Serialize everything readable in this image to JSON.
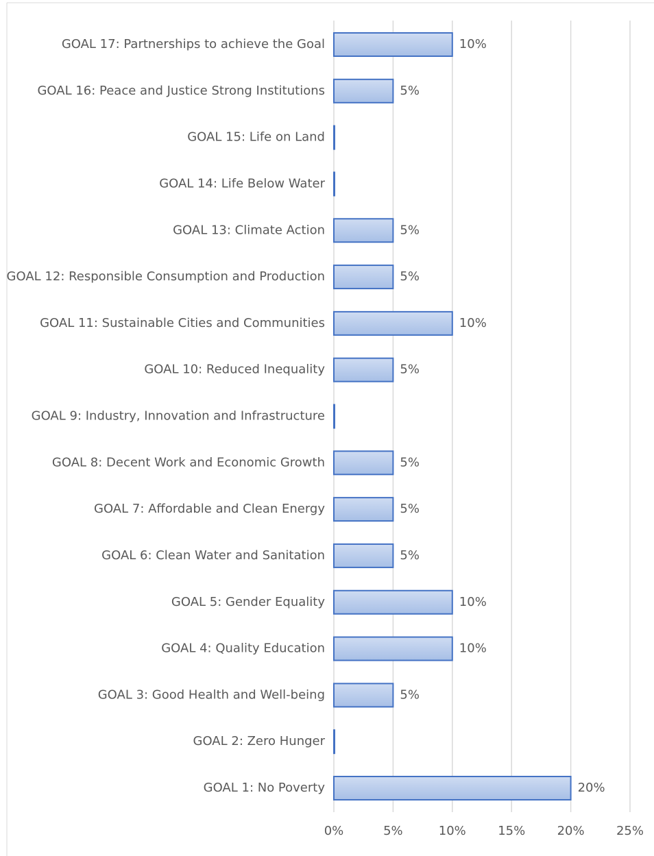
{
  "chart_data": {
    "type": "bar",
    "orientation": "horizontal",
    "categories": [
      "GOAL 17: Partnerships to achieve the Goal",
      "GOAL 16: Peace and Justice Strong Institutions",
      "GOAL 15: Life on Land",
      "GOAL 14: Life Below Water",
      "GOAL 13: Climate Action",
      "GOAL 12: Responsible Consumption and Production",
      "GOAL 11: Sustainable Cities and Communities",
      "GOAL 10: Reduced Inequality",
      "GOAL 9: Industry, Innovation and Infrastructure",
      "GOAL 8: Decent Work and Economic Growth",
      "GOAL 7: Affordable and Clean Energy",
      "GOAL 6: Clean Water and Sanitation",
      "GOAL 5: Gender Equality",
      "GOAL 4: Quality Education",
      "GOAL 3: Good Health and Well-being",
      "GOAL 2: Zero Hunger",
      "GOAL 1: No Poverty"
    ],
    "values": [
      10,
      5,
      0,
      0,
      5,
      5,
      10,
      5,
      0,
      5,
      5,
      5,
      10,
      10,
      5,
      0,
      20
    ],
    "value_labels": [
      "10%",
      "5%",
      null,
      null,
      "5%",
      "5%",
      "10%",
      "5%",
      null,
      "5%",
      "5%",
      "5%",
      "10%",
      "10%",
      "5%",
      null,
      "20%"
    ],
    "color": "#b4c7e7",
    "edge_color": "#4472c4",
    "xlim": [
      0,
      25
    ],
    "xticks": [
      {
        "value": 0,
        "label": "0%"
      },
      {
        "value": 5,
        "label": "5%"
      },
      {
        "value": 10,
        "label": "10%"
      },
      {
        "value": 15,
        "label": "15%"
      },
      {
        "value": 20,
        "label": "20%"
      },
      {
        "value": 25,
        "label": "25%"
      }
    ],
    "grid": true
  }
}
